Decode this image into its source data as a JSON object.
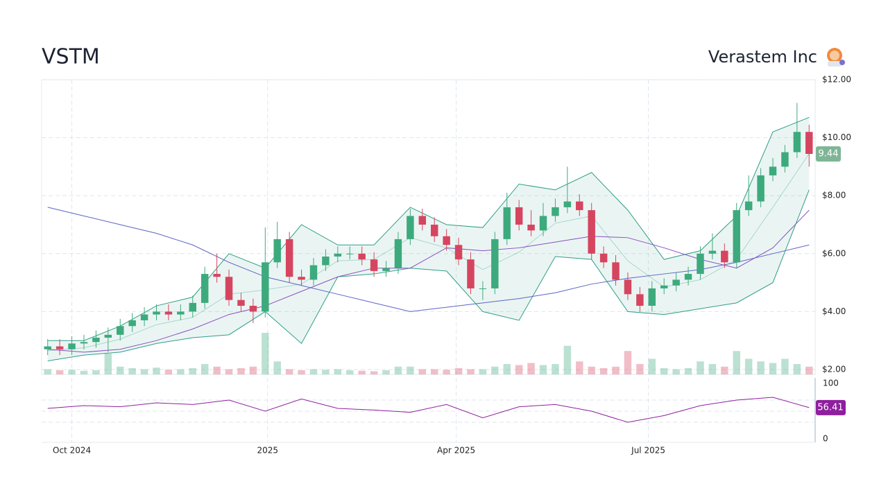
{
  "header": {
    "ticker": "VSTM",
    "company": "Verastem Inc"
  },
  "chart_data": {
    "type": "candlestick",
    "xlim": [
      -0.5,
      63.5
    ],
    "xticks": [
      {
        "value": 2,
        "label": "Oct 2024"
      },
      {
        "value": 18.2,
        "label": "2025"
      },
      {
        "value": 33.8,
        "label": "Apr 2025"
      },
      {
        "value": 49.7,
        "label": "Jul 2025"
      }
    ],
    "ylim": [
      2,
      12
    ],
    "yticks": [
      {
        "value": 2,
        "label": "$2.00"
      },
      {
        "value": 4,
        "label": "$4.00"
      },
      {
        "value": 6,
        "label": "$6.00"
      },
      {
        "value": 8,
        "label": "$8.00"
      },
      {
        "value": 10,
        "label": "$10.00"
      },
      {
        "value": 12,
        "label": "$12.00"
      }
    ],
    "grid": true,
    "up_color": "#3daa7d",
    "down_color": "#d6455f",
    "open": [
      2.7,
      2.8,
      2.7,
      2.9,
      2.95,
      3.1,
      3.2,
      3.5,
      3.7,
      3.9,
      4.0,
      3.9,
      4.0,
      4.3,
      5.3,
      5.2,
      4.4,
      4.2,
      4.0,
      5.7,
      6.5,
      5.2,
      5.1,
      5.6,
      5.9,
      6.0,
      6.0,
      5.8,
      5.4,
      5.5,
      6.5,
      7.3,
      7.0,
      6.6,
      6.3,
      5.8,
      4.8,
      4.8,
      6.5,
      7.6,
      7.0,
      6.8,
      7.3,
      7.6,
      7.8,
      7.5,
      6.0,
      5.7,
      5.1,
      4.6,
      4.2,
      4.8,
      4.9,
      5.1,
      5.3,
      6.0,
      6.1,
      5.7,
      7.5,
      7.8,
      8.7,
      9.0,
      9.5,
      10.2
    ],
    "high": [
      3.05,
      3.05,
      3.15,
      3.2,
      3.35,
      3.45,
      3.75,
      3.95,
      4.15,
      4.25,
      4.25,
      4.25,
      4.55,
      5.55,
      6.0,
      5.45,
      4.65,
      4.45,
      6.9,
      7.1,
      6.75,
      5.45,
      5.85,
      6.15,
      6.25,
      6.25,
      6.25,
      6.05,
      5.75,
      6.75,
      7.55,
      7.55,
      7.25,
      6.85,
      6.55,
      6.05,
      5.05,
      6.75,
      8.1,
      7.85,
      7.5,
      7.75,
      7.9,
      9.0,
      8.05,
      7.75,
      6.25,
      5.95,
      5.35,
      4.85,
      5.05,
      5.15,
      5.35,
      5.55,
      6.25,
      6.7,
      6.35,
      7.75,
      8.7,
      8.95,
      9.3,
      9.75,
      11.2,
      10.45
    ],
    "low": [
      2.5,
      2.5,
      2.5,
      2.7,
      2.75,
      2.6,
      3.0,
      3.3,
      3.5,
      3.7,
      3.7,
      3.7,
      3.8,
      4.1,
      5.0,
      4.2,
      4.0,
      3.6,
      3.8,
      5.5,
      5.0,
      4.9,
      4.9,
      5.4,
      5.7,
      5.8,
      5.6,
      5.2,
      5.2,
      5.3,
      6.3,
      6.8,
      6.4,
      6.1,
      5.6,
      4.6,
      4.4,
      4.6,
      6.3,
      6.8,
      6.6,
      6.6,
      7.1,
      7.4,
      7.3,
      5.8,
      5.5,
      4.9,
      4.4,
      4.0,
      4.0,
      4.6,
      4.7,
      4.9,
      5.1,
      5.8,
      5.5,
      5.5,
      7.3,
      7.6,
      8.5,
      8.8,
      9.3,
      9.0
    ],
    "close": [
      2.8,
      2.7,
      2.9,
      2.95,
      3.1,
      3.2,
      3.5,
      3.7,
      3.9,
      4.0,
      3.9,
      4.0,
      4.3,
      5.3,
      5.2,
      4.4,
      4.2,
      4.0,
      5.7,
      6.5,
      5.2,
      5.1,
      5.6,
      5.9,
      6.0,
      6.0,
      5.8,
      5.4,
      5.5,
      6.5,
      7.3,
      7.0,
      6.6,
      6.3,
      5.8,
      4.8,
      4.8,
      6.5,
      7.6,
      7.0,
      6.8,
      7.3,
      7.6,
      7.8,
      7.5,
      6.0,
      5.7,
      5.1,
      4.6,
      4.2,
      4.8,
      4.9,
      5.1,
      5.3,
      6.0,
      6.1,
      5.7,
      7.5,
      7.8,
      8.7,
      9.0,
      9.5,
      10.2,
      9.44
    ],
    "volume": [
      1,
      0.8,
      0.9,
      0.7,
      0.8,
      4,
      1.5,
      1.2,
      1,
      1.3,
      0.9,
      1,
      1.2,
      2,
      1.5,
      1,
      1.2,
      1.5,
      8,
      2.5,
      1,
      0.8,
      1,
      0.9,
      1,
      0.8,
      0.7,
      0.6,
      0.8,
      1.5,
      1.5,
      1,
      1,
      0.9,
      1.2,
      1,
      1,
      1.5,
      2,
      1.8,
      2.2,
      1.8,
      2,
      5.5,
      2.5,
      1.5,
      1.2,
      1.5,
      4.5,
      2,
      3,
      1.2,
      1,
      1.2,
      2.5,
      2,
      1.5,
      4.5,
      3,
      2.5,
      2.2,
      3,
      2,
      1.5
    ],
    "volume_ylim": [
      0,
      12
    ],
    "line_x": [
      0,
      3,
      6,
      9,
      12,
      15,
      18,
      21,
      24,
      27,
      30,
      33,
      36,
      39,
      42,
      45,
      48,
      51,
      54,
      57,
      60,
      63
    ],
    "series": [
      {
        "color": "#5b63c4",
        "values": [
          7.6,
          7.3,
          7.0,
          6.7,
          6.3,
          5.7,
          5.2,
          4.9,
          4.6,
          4.3,
          4.0,
          4.15,
          4.3,
          4.45,
          4.65,
          4.95,
          5.15,
          5.3,
          5.45,
          5.7,
          6.0,
          6.3
        ]
      },
      {
        "color": "#8a4fc0",
        "values": [
          2.7,
          2.6,
          2.7,
          3.0,
          3.4,
          3.9,
          4.2,
          4.7,
          5.2,
          5.5,
          5.5,
          6.2,
          6.1,
          6.2,
          6.4,
          6.6,
          6.55,
          6.2,
          5.8,
          5.5,
          6.2,
          7.5
        ]
      }
    ],
    "bands": {
      "color": "#2e9e86",
      "upper": [
        3.0,
        3.0,
        3.5,
        4.2,
        4.5,
        6.0,
        5.5,
        7.0,
        6.3,
        6.3,
        7.6,
        7.0,
        6.9,
        8.4,
        8.2,
        8.8,
        7.5,
        5.8,
        6.1,
        7.3,
        10.2,
        10.7
      ],
      "middle": [
        2.65,
        2.75,
        3.05,
        3.55,
        3.8,
        4.6,
        4.75,
        4.95,
        5.75,
        5.8,
        6.55,
        6.2,
        5.45,
        6.05,
        7.05,
        7.3,
        5.75,
        4.85,
        5.1,
        5.8,
        7.6,
        9.45
      ],
      "lower": [
        2.3,
        2.5,
        2.6,
        2.9,
        3.1,
        3.2,
        4.0,
        2.9,
        5.2,
        5.3,
        5.5,
        5.4,
        4.0,
        3.7,
        5.9,
        5.8,
        4.0,
        3.9,
        4.1,
        4.3,
        5.0,
        8.2
      ]
    },
    "last_price_color": "#7fb596",
    "rsi": {
      "color": "#8e1f9e",
      "ylim": [
        0,
        100
      ],
      "yticks": [
        0,
        100
      ],
      "grid": [
        30,
        50,
        70
      ],
      "values": [
        55,
        60,
        58,
        65,
        62,
        70,
        50,
        72,
        55,
        52,
        48,
        62,
        38,
        58,
        62,
        50,
        30,
        42,
        60,
        70,
        75,
        56.41
      ]
    }
  }
}
